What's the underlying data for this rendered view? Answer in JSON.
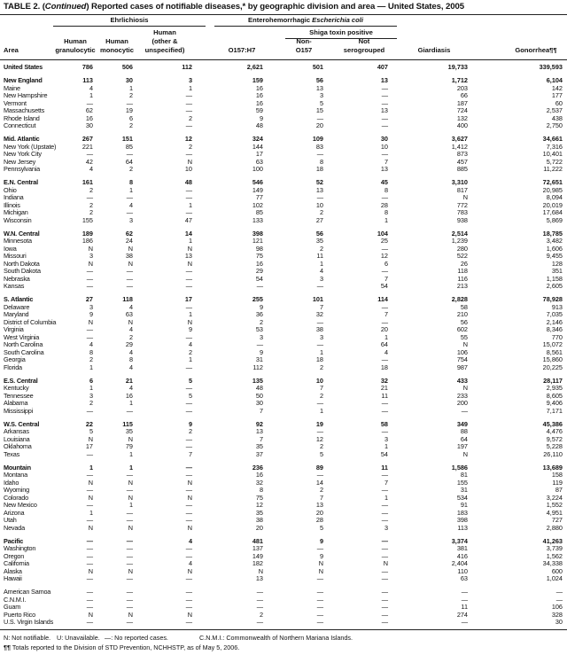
{
  "title": {
    "prefix": "TABLE 2. (",
    "italic": "Continued",
    "suffix": ") Reported cases of notifiable diseases,* by geographic division and area — United States, 2005"
  },
  "header": {
    "group_ehrlichiosis": "Ehrlichiosis",
    "group_ehec_prefix": "Enterohemorrhagic ",
    "group_ehec_italic": "Escherichia coli",
    "subgroup_shiga": "Shiga toxin positive",
    "area": "Area",
    "columns": [
      {
        "line1": "Human",
        "line2": "granulocytic"
      },
      {
        "line1": "Human",
        "line2": "monocytic"
      },
      {
        "line0": "Human",
        "line1": "(other &",
        "line2": "unspecified)"
      },
      {
        "line1": "",
        "line2": "O157:H7"
      },
      {
        "line1": "Non-",
        "line2": "O157"
      },
      {
        "line1": "Not",
        "line2": "serogrouped"
      },
      {
        "line1": "",
        "line2": "Giardiasis"
      },
      {
        "line1": "",
        "line2": "Gonorrhea¶¶"
      }
    ]
  },
  "rows": [
    {
      "area": "United States",
      "bold": true,
      "values": [
        "786",
        "506",
        "112",
        "2,621",
        "501",
        "407",
        "19,733",
        "339,593"
      ]
    },
    {
      "area": "New England",
      "bold": true,
      "gap": true,
      "values": [
        "113",
        "30",
        "3",
        "159",
        "56",
        "13",
        "1,712",
        "6,104"
      ]
    },
    {
      "area": "Maine",
      "values": [
        "4",
        "1",
        "1",
        "16",
        "13",
        "—",
        "203",
        "142"
      ]
    },
    {
      "area": "New Hampshire",
      "values": [
        "1",
        "2",
        "—",
        "16",
        "3",
        "—",
        "66",
        "177"
      ]
    },
    {
      "area": "Vermont",
      "values": [
        "—",
        "—",
        "—",
        "16",
        "5",
        "—",
        "187",
        "60"
      ]
    },
    {
      "area": "Massachusetts",
      "values": [
        "62",
        "19",
        "—",
        "59",
        "15",
        "13",
        "724",
        "2,537"
      ]
    },
    {
      "area": "Rhode Island",
      "values": [
        "16",
        "6",
        "2",
        "9",
        "—",
        "—",
        "132",
        "438"
      ]
    },
    {
      "area": "Connecticut",
      "values": [
        "30",
        "2",
        "—",
        "48",
        "20",
        "—",
        "400",
        "2,750"
      ]
    },
    {
      "area": "Mid. Atlantic",
      "bold": true,
      "gap": true,
      "values": [
        "267",
        "151",
        "12",
        "324",
        "109",
        "30",
        "3,627",
        "34,661"
      ]
    },
    {
      "area": "New York (Upstate)",
      "values": [
        "221",
        "85",
        "2",
        "144",
        "83",
        "10",
        "1,412",
        "7,316"
      ]
    },
    {
      "area": "New York City",
      "values": [
        "—",
        "—",
        "—",
        "17",
        "—",
        "—",
        "873",
        "10,401"
      ]
    },
    {
      "area": "New Jersey",
      "values": [
        "42",
        "64",
        "N",
        "63",
        "8",
        "7",
        "457",
        "5,722"
      ]
    },
    {
      "area": "Pennsylvania",
      "values": [
        "4",
        "2",
        "10",
        "100",
        "18",
        "13",
        "885",
        "11,222"
      ]
    },
    {
      "area": "E.N. Central",
      "bold": true,
      "gap": true,
      "values": [
        "161",
        "8",
        "48",
        "546",
        "52",
        "45",
        "3,310",
        "72,651"
      ]
    },
    {
      "area": "Ohio",
      "values": [
        "2",
        "1",
        "—",
        "149",
        "13",
        "8",
        "817",
        "20,985"
      ]
    },
    {
      "area": "Indiana",
      "values": [
        "—",
        "—",
        "—",
        "77",
        "—",
        "—",
        "N",
        "8,094"
      ]
    },
    {
      "area": "Illinois",
      "values": [
        "2",
        "4",
        "1",
        "102",
        "10",
        "28",
        "772",
        "20,019"
      ]
    },
    {
      "area": "Michigan",
      "values": [
        "2",
        "—",
        "—",
        "85",
        "2",
        "8",
        "783",
        "17,684"
      ]
    },
    {
      "area": "Wisconsin",
      "values": [
        "155",
        "3",
        "47",
        "133",
        "27",
        "1",
        "938",
        "5,869"
      ]
    },
    {
      "area": "W.N. Central",
      "bold": true,
      "gap": true,
      "values": [
        "189",
        "62",
        "14",
        "398",
        "56",
        "104",
        "2,514",
        "18,785"
      ]
    },
    {
      "area": "Minnesota",
      "values": [
        "186",
        "24",
        "1",
        "121",
        "35",
        "25",
        "1,239",
        "3,482"
      ]
    },
    {
      "area": "Iowa",
      "values": [
        "N",
        "N",
        "N",
        "98",
        "2",
        "—",
        "280",
        "1,606"
      ]
    },
    {
      "area": "Missouri",
      "values": [
        "3",
        "38",
        "13",
        "75",
        "11",
        "12",
        "522",
        "9,455"
      ]
    },
    {
      "area": "North Dakota",
      "values": [
        "N",
        "N",
        "N",
        "16",
        "1",
        "6",
        "26",
        "128"
      ]
    },
    {
      "area": "South Dakota",
      "values": [
        "—",
        "—",
        "—",
        "29",
        "4",
        "—",
        "118",
        "351"
      ]
    },
    {
      "area": "Nebraska",
      "values": [
        "—",
        "—",
        "—",
        "54",
        "3",
        "7",
        "116",
        "1,158"
      ]
    },
    {
      "area": "Kansas",
      "values": [
        "—",
        "—",
        "—",
        "—",
        "—",
        "54",
        "213",
        "2,605"
      ]
    },
    {
      "area": "S. Atlantic",
      "bold": true,
      "gap": true,
      "values": [
        "27",
        "118",
        "17",
        "255",
        "101",
        "114",
        "2,828",
        "78,928"
      ]
    },
    {
      "area": "Delaware",
      "values": [
        "3",
        "4",
        "—",
        "9",
        "7",
        "—",
        "58",
        "913"
      ]
    },
    {
      "area": "Maryland",
      "values": [
        "9",
        "63",
        "1",
        "36",
        "32",
        "7",
        "210",
        "7,035"
      ]
    },
    {
      "area": "District of Columbia",
      "values": [
        "N",
        "N",
        "N",
        "2",
        "—",
        "—",
        "56",
        "2,146"
      ]
    },
    {
      "area": "Virginia",
      "values": [
        "—",
        "4",
        "9",
        "53",
        "38",
        "20",
        "602",
        "8,346"
      ]
    },
    {
      "area": "West Virginia",
      "values": [
        "—",
        "2",
        "—",
        "3",
        "3",
        "1",
        "55",
        "770"
      ]
    },
    {
      "area": "North Carolina",
      "values": [
        "4",
        "29",
        "4",
        "—",
        "—",
        "64",
        "N",
        "15,072"
      ]
    },
    {
      "area": "South Carolina",
      "values": [
        "8",
        "4",
        "2",
        "9",
        "1",
        "4",
        "106",
        "8,561"
      ]
    },
    {
      "area": "Georgia",
      "values": [
        "2",
        "8",
        "1",
        "31",
        "18",
        "—",
        "754",
        "15,860"
      ]
    },
    {
      "area": "Florida",
      "values": [
        "1",
        "4",
        "—",
        "112",
        "2",
        "18",
        "987",
        "20,225"
      ]
    },
    {
      "area": "E.S. Central",
      "bold": true,
      "gap": true,
      "values": [
        "6",
        "21",
        "5",
        "135",
        "10",
        "32",
        "433",
        "28,117"
      ]
    },
    {
      "area": "Kentucky",
      "values": [
        "1",
        "4",
        "—",
        "48",
        "7",
        "21",
        "N",
        "2,935"
      ]
    },
    {
      "area": "Tennessee",
      "values": [
        "3",
        "16",
        "5",
        "50",
        "2",
        "11",
        "233",
        "8,605"
      ]
    },
    {
      "area": "Alabama",
      "values": [
        "2",
        "1",
        "—",
        "30",
        "—",
        "—",
        "200",
        "9,406"
      ]
    },
    {
      "area": "Mississippi",
      "values": [
        "—",
        "—",
        "—",
        "7",
        "1",
        "—",
        "—",
        "7,171"
      ]
    },
    {
      "area": "W.S. Central",
      "bold": true,
      "gap": true,
      "values": [
        "22",
        "115",
        "9",
        "92",
        "19",
        "58",
        "349",
        "45,386"
      ]
    },
    {
      "area": "Arkansas",
      "values": [
        "5",
        "35",
        "2",
        "13",
        "—",
        "—",
        "88",
        "4,476"
      ]
    },
    {
      "area": "Louisiana",
      "values": [
        "N",
        "N",
        "—",
        "7",
        "12",
        "3",
        "64",
        "9,572"
      ]
    },
    {
      "area": "Oklahoma",
      "values": [
        "17",
        "79",
        "—",
        "35",
        "2",
        "1",
        "197",
        "5,228"
      ]
    },
    {
      "area": "Texas",
      "values": [
        "—",
        "1",
        "7",
        "37",
        "5",
        "54",
        "N",
        "26,110"
      ]
    },
    {
      "area": "Mountain",
      "bold": true,
      "gap": true,
      "values": [
        "1",
        "1",
        "—",
        "236",
        "89",
        "11",
        "1,586",
        "13,689"
      ]
    },
    {
      "area": "Montana",
      "values": [
        "—",
        "—",
        "—",
        "16",
        "—",
        "—",
        "81",
        "158"
      ]
    },
    {
      "area": "Idaho",
      "values": [
        "N",
        "N",
        "N",
        "32",
        "14",
        "7",
        "155",
        "119"
      ]
    },
    {
      "area": "Wyoming",
      "values": [
        "—",
        "—",
        "—",
        "8",
        "2",
        "—",
        "31",
        "87"
      ]
    },
    {
      "area": "Colorado",
      "values": [
        "N",
        "N",
        "N",
        "75",
        "7",
        "1",
        "534",
        "3,224"
      ]
    },
    {
      "area": "New Mexico",
      "values": [
        "—",
        "1",
        "—",
        "12",
        "13",
        "—",
        "91",
        "1,552"
      ]
    },
    {
      "area": "Arizona",
      "values": [
        "1",
        "—",
        "—",
        "35",
        "20",
        "—",
        "183",
        "4,951"
      ]
    },
    {
      "area": "Utah",
      "values": [
        "—",
        "—",
        "—",
        "38",
        "28",
        "—",
        "398",
        "727"
      ]
    },
    {
      "area": "Nevada",
      "values": [
        "N",
        "N",
        "N",
        "20",
        "5",
        "3",
        "113",
        "2,880"
      ]
    },
    {
      "area": "Pacific",
      "bold": true,
      "gap": true,
      "values": [
        "—",
        "—",
        "4",
        "481",
        "9",
        "—",
        "3,374",
        "41,263"
      ]
    },
    {
      "area": "Washington",
      "values": [
        "—",
        "—",
        "—",
        "137",
        "—",
        "—",
        "381",
        "3,739"
      ]
    },
    {
      "area": "Oregon",
      "values": [
        "—",
        "—",
        "—",
        "149",
        "9",
        "—",
        "416",
        "1,562"
      ]
    },
    {
      "area": "California",
      "values": [
        "—",
        "—",
        "4",
        "182",
        "N",
        "N",
        "2,404",
        "34,338"
      ]
    },
    {
      "area": "Alaska",
      "values": [
        "N",
        "N",
        "N",
        "N",
        "N",
        "—",
        "110",
        "600"
      ]
    },
    {
      "area": "Hawaii",
      "values": [
        "—",
        "—",
        "—",
        "13",
        "—",
        "—",
        "63",
        "1,024"
      ]
    },
    {
      "area": "American Samoa",
      "gap": true,
      "values": [
        "—",
        "—",
        "—",
        "—",
        "—",
        "—",
        "—",
        "—"
      ]
    },
    {
      "area": "C.N.M.I.",
      "values": [
        "—",
        "—",
        "—",
        "—",
        "—",
        "—",
        "—",
        "—"
      ]
    },
    {
      "area": "Guam",
      "values": [
        "—",
        "—",
        "—",
        "—",
        "—",
        "—",
        "11",
        "106"
      ]
    },
    {
      "area": "Puerto Rico",
      "values": [
        "N",
        "N",
        "N",
        "2",
        "—",
        "—",
        "274",
        "328"
      ]
    },
    {
      "area": "U.S. Virgin Islands",
      "values": [
        "—",
        "—",
        "—",
        "—",
        "—",
        "—",
        "—",
        "30"
      ]
    }
  ],
  "footer": {
    "legend": [
      "N: Not notifiable.",
      "U: Unavailable.",
      "—: No reported cases.",
      "C.N.M.I.: Commonwealth of Northern Mariana Islands."
    ],
    "footnote_mark": "¶¶",
    "footnote": "Totals reported to the Division of STD Prevention, NCHHSTP, as of May 5, 2006."
  }
}
